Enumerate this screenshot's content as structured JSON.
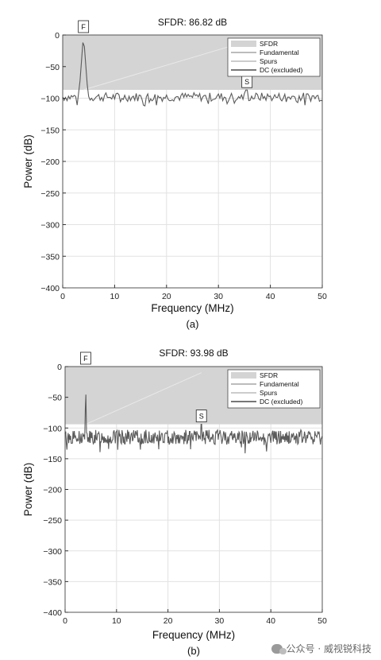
{
  "chart_data": [
    {
      "type": "line",
      "title": "SFDR:  86.82 dB",
      "xlabel": "Frequency (MHz)",
      "ylabel": "Power (dB)",
      "caption": "(a)",
      "xlim": [
        0,
        50
      ],
      "ylim": [
        -400,
        0
      ],
      "xticks": [
        "0",
        "10",
        "20",
        "30",
        "40",
        "50"
      ],
      "yticks": [
        "0",
        "−50",
        "−100",
        "−150",
        "−200",
        "−250",
        "−300",
        "−350",
        "−400"
      ],
      "grid": true,
      "legend_position": "top-right",
      "legend": [
        "SFDR",
        "Fundamental",
        "Spurs",
        "DC (excluded)"
      ],
      "sfdr_band": [
        -86.82,
        0
      ],
      "fundamental": {
        "label": "F",
        "freq": 4.0,
        "power": 0
      },
      "spur": {
        "label": "S",
        "freq": 35.5,
        "power": -87
      },
      "noise_floor": {
        "mean": -98,
        "spread": 7
      },
      "colors": {
        "band": "#d4d4d4",
        "trace": "#5a5a5a",
        "grid": "#e2e2e2"
      }
    },
    {
      "type": "line",
      "title": "SFDR:  93.98 dB",
      "xlabel": "Frequency (MHz)",
      "ylabel": "Power (dB)",
      "caption": "(b)",
      "xlim": [
        0,
        50
      ],
      "ylim": [
        -400,
        0
      ],
      "xticks": [
        "0",
        "10",
        "20",
        "30",
        "40",
        "50"
      ],
      "yticks": [
        "0",
        "−50",
        "−100",
        "−150",
        "−200",
        "−250",
        "−300",
        "−350",
        "−400"
      ],
      "grid": true,
      "legend_position": "top-right",
      "legend": [
        "SFDR",
        "Fundamental",
        "Spurs",
        "DC (excluded)"
      ],
      "sfdr_band": [
        -93.98,
        0
      ],
      "fundamental": {
        "label": "F",
        "freq": 4.0,
        "power": 0
      },
      "spur": {
        "label": "S",
        "freq": 26.5,
        "power": -94
      },
      "noise_floor": {
        "mean": -115,
        "spread": 12
      },
      "colors": {
        "band": "#d4d4d4",
        "trace": "#5a5a5a",
        "grid": "#e2e2e2"
      }
    }
  ],
  "watermark": "公众号 · 威视锐科技"
}
